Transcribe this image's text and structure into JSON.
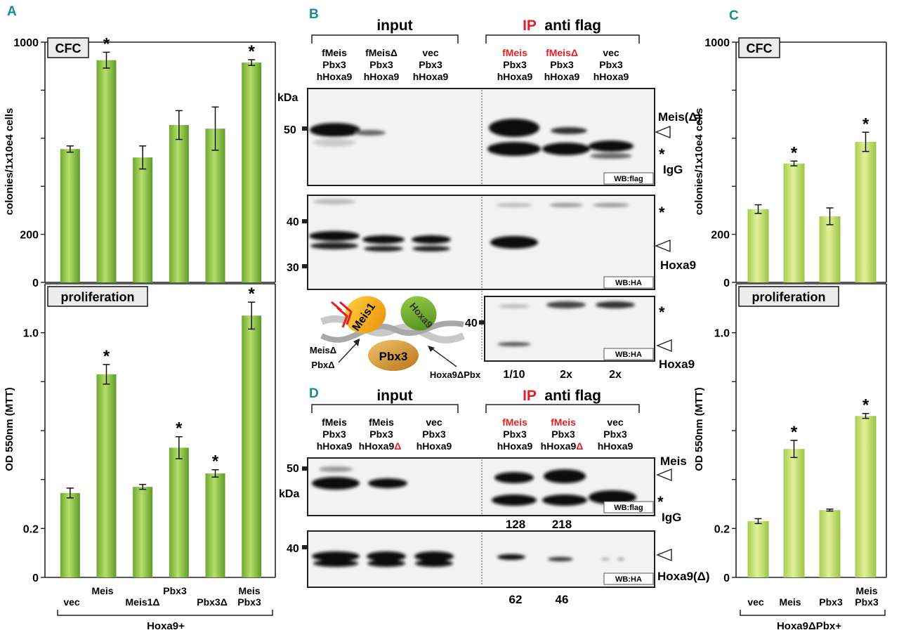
{
  "panel_letters": {
    "A": "A",
    "B": "B",
    "C": "C",
    "D": "D"
  },
  "colors": {
    "panel_letter": "#1a8a8a",
    "bar_A": "#8dc63f",
    "bar_C": "#c6e270",
    "red": "#e41e26",
    "blot_bg": "#f3f3f3",
    "box_bg": "#ececec"
  },
  "chart_data": [
    {
      "panel": "A-top",
      "type": "bar",
      "box_label": "CFC",
      "ylabel": "colonies/1x10e4 cells",
      "ylim": [
        0,
        1000
      ],
      "yticks": [
        0,
        200,
        1000
      ],
      "yticks_minor": [
        400,
        600,
        800
      ],
      "categories": [
        "vec",
        "Meis",
        "Meis1Δ",
        "Pbx3",
        "Pbx3Δ",
        "Meis Pbx3"
      ],
      "values": [
        555,
        925,
        520,
        655,
        640,
        915
      ],
      "errors": [
        13,
        33,
        48,
        60,
        90,
        12
      ],
      "significant": [
        false,
        true,
        false,
        false,
        false,
        true
      ]
    },
    {
      "panel": "A-bottom",
      "type": "bar",
      "box_label": "proliferation",
      "ylabel": "OD 550nm (MTT)",
      "ylim": [
        0,
        1.2
      ],
      "yticks": [
        0,
        0.2,
        1.0
      ],
      "ytick_labels": [
        "0",
        "0.2",
        "1.0"
      ],
      "yticks_minor": [
        0.4,
        0.6,
        0.8
      ],
      "categories": [
        "vec",
        "Meis",
        "Meis1Δ",
        "Pbx3",
        "Pbx3Δ",
        "Meis Pbx3"
      ],
      "values": [
        0.345,
        0.83,
        0.37,
        0.53,
        0.425,
        1.07
      ],
      "errors": [
        0.02,
        0.04,
        0.01,
        0.045,
        0.015,
        0.055
      ],
      "significant": [
        false,
        true,
        false,
        true,
        true,
        true
      ]
    },
    {
      "panel": "C-top",
      "type": "bar",
      "box_label": "CFC",
      "ylabel": "colonies/1x10e4 cells",
      "ylim": [
        0,
        1000
      ],
      "yticks": [
        0,
        200,
        1000
      ],
      "yticks_minor": [
        400,
        600,
        800
      ],
      "categories": [
        "vec",
        "Meis",
        "Pbx3",
        "Meis Pbx3"
      ],
      "values": [
        305,
        495,
        275,
        585
      ],
      "errors": [
        18,
        10,
        35,
        40
      ],
      "significant": [
        false,
        true,
        false,
        true
      ]
    },
    {
      "panel": "C-bottom",
      "type": "bar",
      "box_label": "proliferation",
      "ylabel": "OD 550nm (MTT)",
      "ylim": [
        0,
        1.2
      ],
      "yticks": [
        0,
        0.2,
        1.0
      ],
      "ytick_labels": [
        "0",
        "0.2",
        "1.0"
      ],
      "yticks_minor": [
        0.4,
        0.6,
        0.8
      ],
      "categories": [
        "vec",
        "Meis",
        "Pbx3",
        "Meis Pbx3"
      ],
      "values": [
        0.23,
        0.525,
        0.275,
        0.66
      ],
      "errors": [
        0.01,
        0.035,
        0.004,
        0.01
      ],
      "significant": [
        false,
        true,
        false,
        true
      ]
    }
  ],
  "panel_A": {
    "x_labels": [
      "vec",
      "Meis",
      "Meis1Δ",
      "Pbx3",
      "Pbx3Δ",
      "Meis",
      "Pbx3"
    ],
    "group_label": "Hoxa9+"
  },
  "panel_C": {
    "x_labels": [
      "vec",
      "Meis",
      "Pbx3",
      "Meis",
      "Pbx3"
    ],
    "group_label": "Hoxa9ΔPbx+"
  },
  "panel_B": {
    "input_title": "input",
    "ip_title_red": "IP",
    "ip_title_black": "anti flag",
    "lanes_input": [
      [
        "fMeis",
        "Pbx3",
        "hHoxa9"
      ],
      [
        "fMeisΔ",
        "Pbx3",
        "hHoxa9"
      ],
      [
        "vec",
        "Pbx3",
        "hHoxa9"
      ]
    ],
    "lanes_ip": [
      [
        "fMeis",
        "Pbx3",
        "hHoxa9"
      ],
      [
        "fMeisΔ",
        "Pbx3",
        "hHoxa9"
      ],
      [
        "vec",
        "Pbx3",
        "hHoxa9"
      ]
    ],
    "kda": "kDa",
    "marker_50": "50",
    "marker_40": "40",
    "marker_30": "30",
    "right_meis": "Meis(Δ)",
    "right_igg": "IgG",
    "right_hoxa9": "Hoxa9",
    "star": "*",
    "wb_flag": "WB:flag",
    "wb_ha": "WB:HA",
    "exposure": [
      "1/10",
      "2x",
      "2x"
    ],
    "diagram": {
      "meis1": "Meis1",
      "hoxa9": "Hoxa9",
      "pbx3": "Pbx3",
      "meis_delta": "MeisΔ",
      "pbx_delta": "PbxΔ",
      "hoxa9_delta_pbx": "Hoxa9ΔPbx"
    }
  },
  "panel_D": {
    "input_title": "input",
    "ip_title_red": "IP",
    "ip_title_black": "anti flag",
    "lanes_input": [
      [
        "fMeis",
        "Pbx3",
        "hHoxa9"
      ],
      [
        "fMeis",
        "Pbx3",
        "hHoxa9",
        "Δ"
      ],
      [
        "vec",
        "Pbx3",
        "hHoxa9"
      ]
    ],
    "lanes_ip": [
      [
        "fMeis",
        "Pbx3",
        "hHoxa9"
      ],
      [
        "fMeis",
        "Pbx3",
        "hHoxa9",
        "Δ"
      ],
      [
        "vec",
        "Pbx3",
        "hHoxa9"
      ]
    ],
    "kda": "kDa",
    "marker_50": "50",
    "marker_40": "40",
    "right_meis": "Meis",
    "right_igg": "IgG",
    "right_hoxa9": "Hoxa9(Δ)",
    "star": "*",
    "wb_flag": "WB:flag",
    "wb_ha": "WB:HA",
    "quant_flag": [
      "128",
      "218"
    ],
    "quant_ha": [
      "62",
      "46"
    ]
  }
}
